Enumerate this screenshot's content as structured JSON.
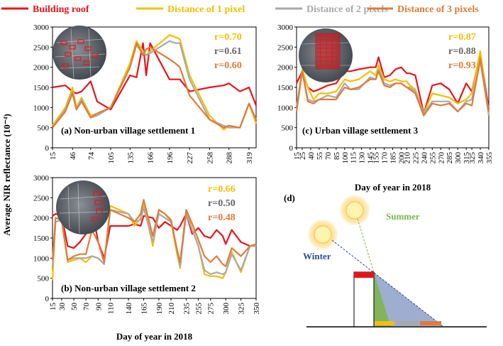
{
  "legend": [
    {
      "label": "Building roof",
      "color": "#e8141b"
    },
    {
      "label": "Distance of 1 pixel",
      "color": "#f5bf00"
    },
    {
      "label": "Distance of 2 pixels",
      "color": "#a9a9a9"
    },
    {
      "label": "Distance of 3 pixels",
      "color": "#e07b39"
    }
  ],
  "y_axis_label": "Average NIR reflectance (10⁻⁴)",
  "x_axis_label_b": "Day of year in 2018",
  "x_axis_label_c": "Day of year in 2018",
  "chart_data": [
    {
      "type": "line",
      "id": "a",
      "title": "(a) Non-urban village settlement 1",
      "xlabel": "",
      "ylabel": "Average NIR reflectance (10⁻⁴)",
      "ylim": [
        0,
        3000
      ],
      "yticks": [
        "0",
        "500",
        "1000",
        "1500",
        "2000",
        "2500",
        "3000"
      ],
      "xticks": [
        "15",
        "46",
        "74",
        "105",
        "135",
        "166",
        "196",
        "227",
        "258",
        "288",
        "319"
      ],
      "x": [
        15,
        35,
        46,
        52,
        60,
        74,
        84,
        105,
        135,
        145,
        155,
        160,
        166,
        196,
        205,
        212,
        227,
        258,
        280,
        288,
        305,
        319,
        330
      ],
      "series": [
        {
          "name": "Building roof",
          "color": "#e8141b",
          "values": [
            1500,
            1550,
            1400,
            1350,
            1400,
            1650,
            1150,
            950,
            1800,
            1750,
            2600,
            1800,
            2600,
            1700,
            1700,
            1700,
            1400,
            1500,
            1550,
            1600,
            1400,
            1500,
            1050
          ]
        },
        {
          "name": "Distance of 1 pixel",
          "color": "#f5bf00",
          "values": [
            550,
            1000,
            1500,
            1000,
            1250,
            800,
            850,
            1000,
            2100,
            2650,
            2400,
            2300,
            2400,
            2800,
            2750,
            2700,
            1800,
            800,
            450,
            550,
            500,
            1100,
            600
          ]
        },
        {
          "name": "Distance of 2 pixels",
          "color": "#a9a9a9",
          "values": [
            500,
            950,
            1400,
            950,
            1200,
            750,
            800,
            1000,
            2000,
            2550,
            2350,
            2300,
            2350,
            2650,
            2600,
            2600,
            1700,
            700,
            550,
            500,
            500,
            1100,
            700
          ]
        },
        {
          "name": "Distance of 3 pixels",
          "color": "#e07b39",
          "values": [
            500,
            900,
            1350,
            950,
            1150,
            750,
            850,
            1000,
            2000,
            2600,
            2300,
            2450,
            2500,
            2200,
            2100,
            2000,
            1300,
            700,
            500,
            550,
            500,
            1100,
            700
          ]
        }
      ],
      "annotations": [
        {
          "text": "r=0.70",
          "color": "#f5bf00"
        },
        {
          "text": "r=0.61",
          "color": "#666666"
        },
        {
          "text": "r=0.60",
          "color": "#e07b39"
        }
      ]
    },
    {
      "type": "line",
      "id": "b",
      "title": "(b) Non-urban village settlement 2",
      "xlabel": "Day of year in 2018",
      "ylabel": "Average NIR reflectance (10⁻⁴)",
      "ylim": [
        0,
        3000
      ],
      "yticks": [
        "0",
        "500",
        "1000",
        "1500",
        "2000",
        "2500",
        "3000"
      ],
      "xticks": [
        "15",
        "30",
        "50",
        "70",
        "90",
        "110",
        "140",
        "165",
        "190",
        "210",
        "235",
        "255",
        "275",
        "300",
        "325",
        "350"
      ],
      "x": [
        15,
        20,
        30,
        40,
        50,
        60,
        70,
        80,
        90,
        100,
        110,
        140,
        150,
        160,
        165,
        180,
        190,
        200,
        210,
        220,
        225,
        235,
        245,
        255,
        265,
        275,
        285,
        295,
        300,
        310,
        325,
        340,
        350
      ],
      "series": [
        {
          "name": "Building roof",
          "color": "#e8141b",
          "values": [
            2050,
            2100,
            2050,
            1300,
            1250,
            1400,
            1600,
            2250,
            1400,
            1000,
            1800,
            1800,
            1850,
            1800,
            2050,
            2000,
            1750,
            1900,
            1800,
            1700,
            1800,
            2100,
            1600,
            1750,
            1550,
            1500,
            1700,
            1550,
            1350,
            1700,
            1400,
            1300,
            1300
          ]
        },
        {
          "name": "Distance of 1 pixel",
          "color": "#f5bf00",
          "values": [
            450,
            1900,
            1950,
            900,
            950,
            1000,
            900,
            1050,
            1000,
            850,
            2300,
            2100,
            1800,
            2000,
            2350,
            1300,
            2200,
            2100,
            1900,
            1100,
            750,
            2200,
            1700,
            1300,
            600,
            550,
            550,
            500,
            650,
            1150,
            650,
            1300,
            1300
          ]
        },
        {
          "name": "Distance of 2 pixels",
          "color": "#a9a9a9",
          "values": [
            800,
            1900,
            1950,
            950,
            1000,
            1000,
            1000,
            1050,
            1000,
            850,
            2200,
            2100,
            1900,
            1950,
            2250,
            1400,
            2100,
            2000,
            1900,
            1200,
            800,
            2100,
            1700,
            1300,
            700,
            600,
            650,
            600,
            650,
            1100,
            700,
            1300,
            1300
          ]
        },
        {
          "name": "Distance of 3 pixels",
          "color": "#e07b39",
          "values": [
            950,
            2000,
            1950,
            950,
            1050,
            1100,
            1100,
            1700,
            1400,
            900,
            2200,
            2000,
            1900,
            2100,
            2450,
            1550,
            2200,
            2100,
            1950,
            1200,
            900,
            2200,
            1850,
            1450,
            1050,
            900,
            1050,
            850,
            800,
            1250,
            1050,
            1300,
            1350
          ]
        }
      ],
      "annotations": [
        {
          "text": "r=0.66",
          "color": "#f5bf00"
        },
        {
          "text": "r=0.50",
          "color": "#666666"
        },
        {
          "text": "r=0.48",
          "color": "#e07b39"
        }
      ]
    },
    {
      "type": "line",
      "id": "c",
      "title": "(c) Urban village settlement 3",
      "xlabel": "Day of year in 2018",
      "ylabel": "",
      "ylim": [
        0,
        3000
      ],
      "yticks": [
        "0",
        "500",
        "1000",
        "1500",
        "2000",
        "2500",
        "3000"
      ],
      "xticks": [
        "15",
        "25",
        "40",
        "55",
        "70",
        "85",
        "100",
        "115",
        "130",
        "145",
        "155",
        "170",
        "185",
        "200",
        "210",
        "225",
        "240",
        "255",
        "270",
        "285",
        "300",
        "315",
        "325",
        "340",
        "355"
      ],
      "x": [
        15,
        25,
        35,
        45,
        55,
        70,
        85,
        100,
        110,
        125,
        145,
        155,
        160,
        170,
        180,
        190,
        200,
        210,
        215,
        225,
        240,
        255,
        270,
        285,
        300,
        315,
        325,
        340,
        355
      ],
      "series": [
        {
          "name": "Building roof",
          "color": "#e8141b",
          "values": [
            1600,
            1900,
            1500,
            1400,
            1450,
            1550,
            1600,
            1900,
            1900,
            1950,
            2000,
            2000,
            2250,
            1750,
            1800,
            1950,
            2000,
            1850,
            1850,
            1800,
            850,
            1550,
            1600,
            1450,
            1100,
            1600,
            1400,
            2350,
            950
          ]
        },
        {
          "name": "Distance of 1 pixel",
          "color": "#f5bf00",
          "values": [
            1000,
            1950,
            1500,
            1200,
            1350,
            1350,
            1400,
            1700,
            1650,
            1700,
            1900,
            1800,
            2050,
            1700,
            1650,
            1700,
            1650,
            1650,
            1550,
            1450,
            850,
            1350,
            1300,
            1250,
            1100,
            1200,
            1350,
            2400,
            800
          ]
        },
        {
          "name": "Distance of 2 pixels",
          "color": "#a9a9a9",
          "values": [
            1000,
            1900,
            1200,
            1150,
            1200,
            1300,
            1250,
            1600,
            1450,
            1450,
            1750,
            1700,
            1950,
            1600,
            1550,
            1600,
            1600,
            1500,
            1500,
            1400,
            850,
            1150,
            1150,
            1150,
            900,
            1150,
            1200,
            2150,
            800
          ]
        },
        {
          "name": "Distance of 3 pixels",
          "color": "#e07b39",
          "values": [
            900,
            1900,
            1150,
            1100,
            1200,
            1200,
            1200,
            1500,
            1450,
            1500,
            1700,
            1700,
            1900,
            1550,
            1500,
            1600,
            1600,
            1500,
            1450,
            1350,
            800,
            1100,
            1050,
            1100,
            900,
            1100,
            1050,
            2200,
            900
          ]
        }
      ],
      "annotations": [
        {
          "text": "r=0.87",
          "color": "#f5bf00"
        },
        {
          "text": "r=0.88",
          "color": "#666666"
        },
        {
          "text": "r=0.93",
          "color": "#e07b39"
        }
      ]
    }
  ],
  "diagram_d": {
    "label": "(d)",
    "summer_label": "Summer",
    "winter_label": "Winter",
    "summer_color": "#7ab648",
    "winter_color": "#2c4d8f"
  }
}
